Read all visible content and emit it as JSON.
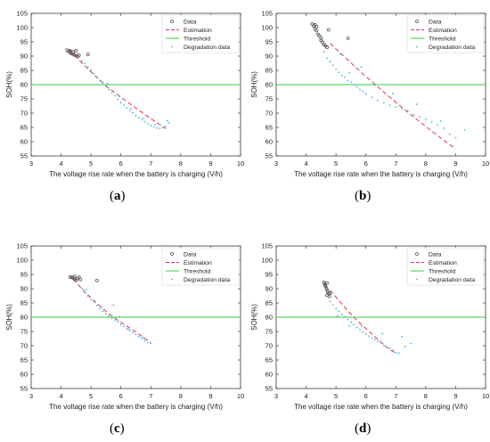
{
  "colors": {
    "data": "#555555",
    "estimation": "#e0344b",
    "threshold": "#2ecc40",
    "degradation": "#45b6e6",
    "axis": "#3a3a3a",
    "text": "#222222"
  },
  "chart_data": [
    {
      "type": "scatter",
      "panel_label": "a",
      "xlabel": "The voltage rise rate when the battery is charging (V/h)",
      "ylabel": "SOH(%)",
      "xlim": [
        3,
        10
      ],
      "ylim": [
        55,
        105
      ],
      "xticks": [
        3,
        4,
        5,
        6,
        7,
        8,
        9,
        10
      ],
      "yticks": [
        55,
        60,
        65,
        70,
        75,
        80,
        85,
        90,
        95,
        100,
        105
      ],
      "legend_position": "top-right",
      "threshold": 80,
      "series": [
        {
          "name": "Data",
          "style": "circle",
          "x": [
            4.2,
            4.25,
            4.3,
            4.3,
            4.35,
            4.4,
            4.45,
            4.5,
            4.55,
            4.6,
            4.4,
            4.5,
            4.9
          ],
          "y": [
            92.1,
            91.6,
            91.9,
            91.2,
            90.9,
            91.5,
            90.4,
            90.2,
            89.8,
            90.3,
            90.7,
            91.9,
            90.6
          ]
        },
        {
          "name": "Estimation",
          "style": "dashed",
          "x": [
            4.3,
            4.6,
            5.0,
            5.5,
            6.0,
            6.5,
            7.0,
            7.5
          ],
          "y": [
            92.2,
            88.6,
            84.5,
            79.6,
            75.6,
            71.8,
            68.1,
            64.6
          ]
        },
        {
          "name": "Threshold",
          "style": "line",
          "y_value": 80
        },
        {
          "name": "Degradation data",
          "style": "dots",
          "x": [
            4.7,
            4.8,
            4.9,
            5.0,
            5.1,
            5.2,
            5.3,
            5.4,
            5.5,
            5.6,
            5.7,
            5.8,
            5.9,
            6.0,
            6.1,
            6.2,
            6.3,
            6.4,
            6.5,
            6.6,
            6.7,
            6.8,
            6.9,
            7.0,
            7.1,
            7.2,
            7.3,
            7.4,
            7.5,
            7.6,
            5.55,
            5.95,
            6.35,
            6.75,
            7.15,
            7.55
          ],
          "y": [
            88.3,
            87.4,
            86.2,
            85.1,
            83.9,
            82.7,
            81.5,
            80.6,
            79.4,
            78.3,
            77.2,
            76.1,
            74.8,
            73.7,
            72.8,
            71.9,
            70.9,
            70.1,
            69.2,
            68.5,
            67.7,
            67.0,
            66.3,
            65.7,
            65.2,
            64.8,
            64.6,
            64.9,
            65.4,
            66.6,
            80.4,
            75.8,
            71.6,
            68.2,
            66.1,
            67.3
          ]
        }
      ]
    },
    {
      "type": "scatter",
      "panel_label": "b",
      "xlabel": "The voltage rise rate when the battery is charging (V/h)",
      "ylabel": "SOH(%)",
      "xlim": [
        3,
        10
      ],
      "ylim": [
        55,
        105
      ],
      "xticks": [
        3,
        4,
        5,
        6,
        7,
        8,
        9,
        10
      ],
      "yticks": [
        55,
        60,
        65,
        70,
        75,
        80,
        85,
        90,
        95,
        100,
        105
      ],
      "legend_position": "top-right",
      "threshold": 80,
      "series": [
        {
          "name": "Data",
          "style": "circle",
          "x": [
            4.2,
            4.25,
            4.3,
            4.3,
            4.35,
            4.4,
            4.45,
            4.5,
            4.5,
            4.55,
            4.6,
            4.65,
            4.7,
            4.75,
            4.35,
            5.4
          ],
          "y": [
            101.3,
            100.6,
            101.0,
            99.5,
            98.9,
            97.6,
            97.1,
            96.3,
            95.5,
            94.9,
            94.0,
            93.6,
            93.1,
            99.2,
            100.4,
            96.3
          ]
        },
        {
          "name": "Estimation",
          "style": "dashed",
          "x": [
            4.8,
            5.3,
            5.8,
            6.3,
            6.8,
            7.3,
            7.8,
            8.3,
            8.8,
            9.0
          ],
          "y": [
            94.5,
            89.6,
            84.7,
            80.1,
            75.6,
            71.2,
            67.0,
            62.9,
            59.0,
            57.5
          ]
        },
        {
          "name": "Threshold",
          "style": "line",
          "y_value": 80
        },
        {
          "name": "Degradation data",
          "style": "dots",
          "x": [
            4.6,
            4.7,
            4.8,
            4.9,
            5.0,
            5.1,
            5.2,
            5.3,
            5.4,
            5.5,
            5.6,
            5.7,
            5.8,
            5.9,
            6.0,
            6.2,
            6.4,
            6.6,
            6.8,
            7.0,
            7.2,
            7.4,
            7.6,
            7.8,
            8.0,
            8.2,
            8.4,
            8.6,
            8.8,
            9.0,
            5.15,
            5.45,
            5.85,
            6.3,
            6.9,
            7.7,
            8.5,
            9.3
          ],
          "y": [
            91.5,
            89.3,
            88.1,
            86.8,
            85.4,
            84.3,
            83.2,
            82.6,
            81.4,
            80.9,
            80.0,
            79.3,
            78.3,
            77.7,
            76.9,
            75.6,
            74.5,
            73.7,
            72.8,
            72.2,
            71.5,
            70.8,
            69.5,
            68.7,
            67.8,
            66.9,
            65.9,
            64.7,
            62.6,
            61.4,
            90.8,
            84.1,
            86.2,
            79.8,
            76.9,
            73.1,
            67.2,
            64.1
          ]
        }
      ]
    },
    {
      "type": "scatter",
      "panel_label": "c",
      "xlabel": "The voltage rise rate when the battery is charging (V/h)",
      "ylabel": "SOH(%)",
      "xlim": [
        3,
        10
      ],
      "ylim": [
        55,
        105
      ],
      "xticks": [
        3,
        4,
        5,
        6,
        7,
        8,
        9,
        10
      ],
      "yticks": [
        55,
        60,
        65,
        70,
        75,
        80,
        85,
        90,
        95,
        100,
        105
      ],
      "legend_position": "top-right",
      "threshold": 80,
      "series": [
        {
          "name": "Data",
          "style": "circle",
          "x": [
            4.3,
            4.35,
            4.4,
            4.45,
            4.5,
            4.55,
            4.6,
            4.45,
            4.65,
            5.2
          ],
          "y": [
            94.1,
            94.0,
            93.8,
            93.3,
            93.0,
            93.6,
            94.1,
            94.3,
            93.2,
            92.9
          ]
        },
        {
          "name": "Estimation",
          "style": "dashed",
          "x": [
            4.4,
            4.8,
            5.2,
            5.6,
            6.0,
            6.4,
            6.8,
            7.0
          ],
          "y": [
            93.4,
            88.8,
            84.8,
            81.2,
            78.2,
            75.5,
            72.6,
            71.0
          ]
        },
        {
          "name": "Threshold",
          "style": "line",
          "y_value": 80
        },
        {
          "name": "Degradation data",
          "style": "dots",
          "x": [
            4.6,
            4.7,
            4.8,
            4.9,
            5.0,
            5.1,
            5.2,
            5.3,
            5.4,
            5.5,
            5.6,
            5.7,
            5.8,
            5.9,
            6.0,
            6.1,
            6.2,
            6.3,
            6.4,
            6.5,
            6.6,
            6.7,
            6.8,
            6.9,
            7.0,
            4.85,
            5.35,
            5.75,
            6.25,
            6.75,
            5.95
          ],
          "y": [
            90.9,
            90.1,
            88.5,
            87.4,
            86.1,
            85.4,
            84.2,
            82.9,
            82.1,
            81.2,
            80.4,
            79.6,
            79.0,
            78.4,
            77.4,
            76.8,
            76.0,
            75.3,
            74.6,
            73.9,
            73.2,
            72.6,
            71.7,
            71.1,
            70.9,
            89.6,
            83.5,
            84.2,
            75.7,
            72.9,
            80.2
          ]
        }
      ]
    },
    {
      "type": "scatter",
      "panel_label": "d",
      "xlabel": "The voltage rise rate when the battery is charging (V/h)",
      "ylabel": "SOH(%)",
      "xlim": [
        3,
        10
      ],
      "ylim": [
        55,
        105
      ],
      "xticks": [
        3,
        4,
        5,
        6,
        7,
        8,
        9,
        10
      ],
      "yticks": [
        55,
        60,
        65,
        70,
        75,
        80,
        85,
        90,
        95,
        100,
        105
      ],
      "legend_position": "top-right",
      "threshold": 80,
      "series": [
        {
          "name": "Data",
          "style": "circle",
          "x": [
            4.6,
            4.62,
            4.65,
            4.68,
            4.7,
            4.72,
            4.75,
            4.7,
            4.78,
            4.64,
            4.7,
            4.8
          ],
          "y": [
            92.3,
            91.6,
            90.9,
            90.2,
            89.6,
            88.9,
            88.3,
            87.7,
            87.3,
            91.2,
            92.0,
            88.4
          ]
        },
        {
          "name": "Estimation",
          "style": "dashed",
          "x": [
            4.8,
            5.2,
            5.6,
            6.0,
            6.4,
            6.8,
            7.0
          ],
          "y": [
            89.5,
            84.6,
            79.9,
            76.0,
            72.2,
            68.6,
            67.5
          ]
        },
        {
          "name": "Threshold",
          "style": "line",
          "y_value": 80
        },
        {
          "name": "Degradation data",
          "style": "dots",
          "x": [
            4.8,
            4.9,
            5.0,
            5.1,
            5.2,
            5.3,
            5.4,
            5.5,
            5.6,
            5.7,
            5.8,
            5.9,
            6.0,
            6.1,
            6.2,
            6.3,
            6.4,
            6.5,
            6.6,
            6.7,
            6.8,
            6.9,
            7.0,
            7.1,
            7.3,
            7.5,
            5.05,
            5.45,
            5.85,
            6.55,
            7.2
          ],
          "y": [
            85.5,
            84.3,
            83.1,
            82.1,
            81.0,
            80.2,
            79.2,
            78.3,
            77.4,
            76.4,
            75.7,
            74.9,
            74.1,
            73.4,
            72.8,
            72.2,
            71.6,
            71.0,
            70.2,
            69.5,
            69.1,
            68.4,
            67.6,
            67.4,
            69.7,
            70.8,
            80.5,
            77.0,
            76.8,
            74.3,
            73.2
          ]
        }
      ]
    }
  ]
}
